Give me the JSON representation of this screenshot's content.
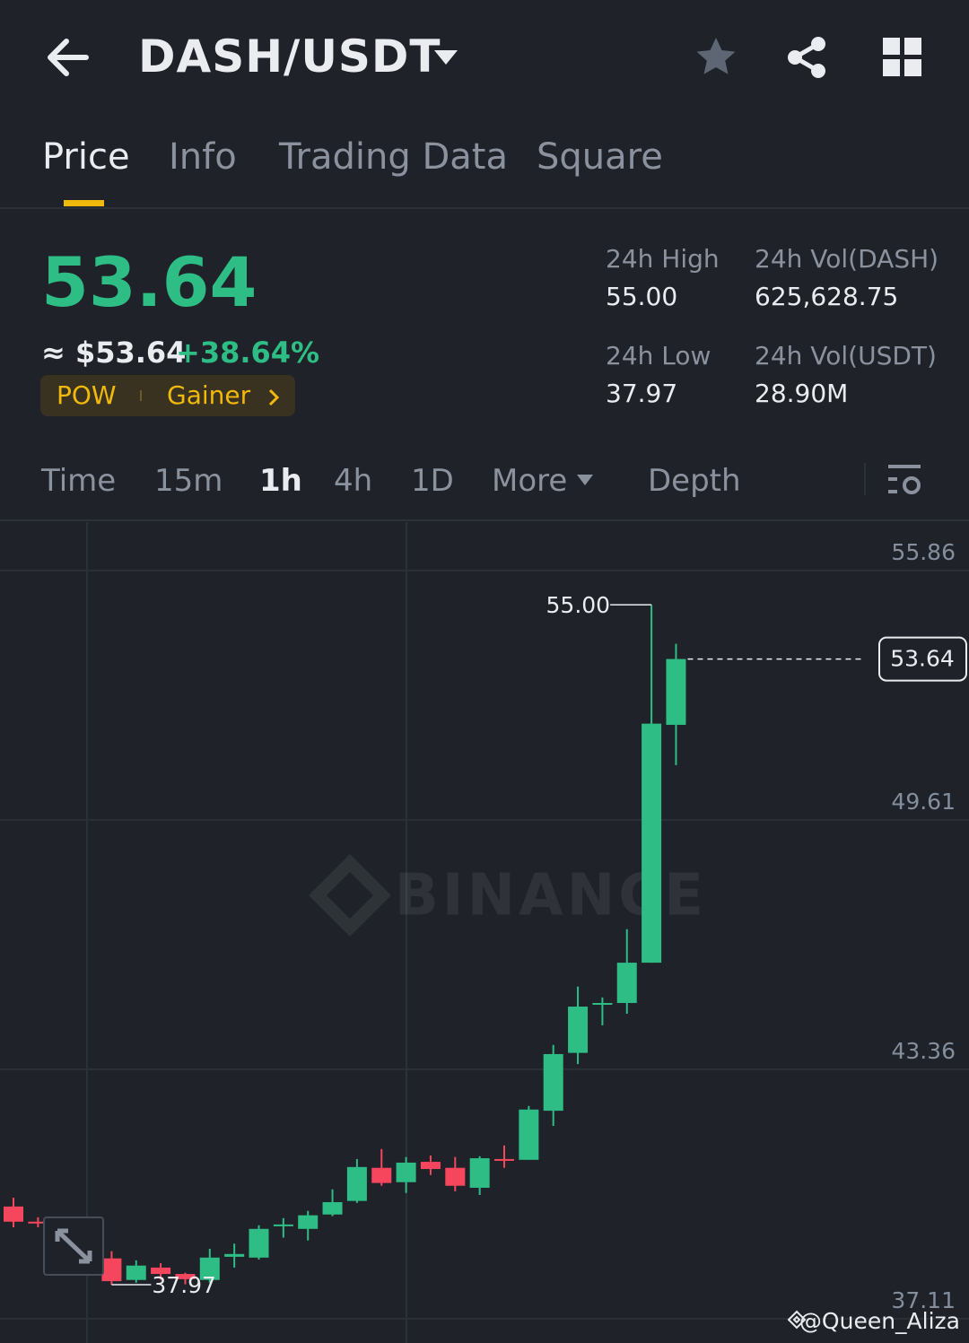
{
  "header": {
    "pair": "DASH/USDT"
  },
  "tabs": [
    "Price",
    "Info",
    "Trading Data",
    "Square"
  ],
  "ticker": {
    "price": "53.64",
    "fiat": "≈ $53.64",
    "change": "+38.64%",
    "tags": [
      "POW",
      "Gainer"
    ]
  },
  "stats": [
    {
      "label": "24h High",
      "value": "55.00"
    },
    {
      "label": "24h Vol(DASH)",
      "value": "625,628.75"
    },
    {
      "label": "24h Low",
      "value": "37.97"
    },
    {
      "label": "24h Vol(USDT)",
      "value": "28.90M"
    }
  ],
  "intervals": [
    "Time",
    "15m",
    "1h",
    "4h",
    "1D",
    "More",
    "Depth"
  ],
  "chart_data": {
    "type": "candlestick",
    "open": [
      39.92,
      39.54,
      null,
      null,
      38.62,
      38.08,
      38.39,
      38.23,
      38.08,
      38.66,
      38.64,
      39.43,
      39.36,
      39.72,
      40.06,
      40.89,
      40.53,
      41.04,
      40.89,
      40.39,
      41.11,
      41.09,
      42.32,
      43.77,
      44.98,
      45.02,
      46.03,
      51.99
    ],
    "high": [
      40.14,
      39.65,
      null,
      null,
      38.8,
      38.57,
      38.5,
      38.26,
      38.86,
      38.99,
      39.45,
      39.63,
      39.81,
      40.35,
      41.11,
      41.36,
      41.16,
      41.2,
      41.16,
      41.18,
      41.45,
      42.44,
      43.97,
      45.43,
      45.16,
      46.87,
      55.0,
      54.02
    ],
    "low": [
      39.4,
      39.4,
      null,
      null,
      37.96,
      38.01,
      38.08,
      37.97,
      38.01,
      38.39,
      38.59,
      39.14,
      39.07,
      39.68,
      40.01,
      40.44,
      40.26,
      40.71,
      40.3,
      40.21,
      40.89,
      41.09,
      41.94,
      43.49,
      44.46,
      44.75,
      46.03,
      50.98
    ],
    "close": [
      39.54,
      39.5,
      null,
      null,
      38.05,
      38.44,
      38.23,
      38.1,
      38.64,
      38.73,
      39.36,
      39.47,
      39.7,
      40.03,
      40.91,
      40.51,
      41.02,
      40.86,
      40.44,
      41.13,
      41.07,
      42.35,
      43.74,
      44.93,
      45.02,
      46.03,
      52.02,
      53.64
    ],
    "up_color": "#2ebd85",
    "down_color": "#f6465d",
    "ylim": [
      36.5,
      57.07
    ],
    "yticks": [
      55.86,
      49.61,
      43.36,
      37.11
    ],
    "grid": true,
    "high_label": "55.00",
    "low_label": "37.97",
    "last_label": "53.64",
    "watermark": "BINANCE",
    "credit": "@Queen_Aliza"
  }
}
